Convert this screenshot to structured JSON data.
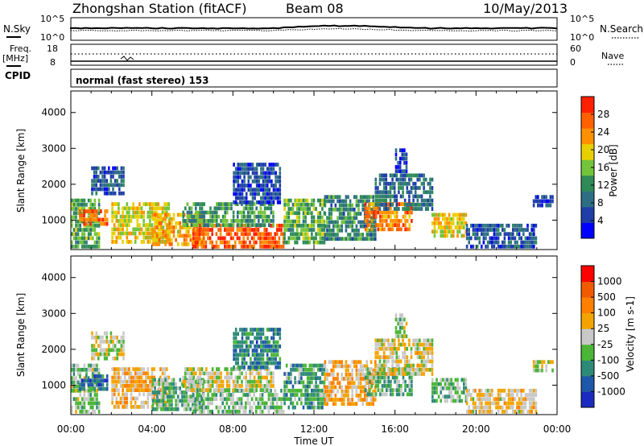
{
  "header": {
    "station": "Zhongshan Station (fitACF)",
    "beam": "Beam 08",
    "date": "10/May/2013"
  },
  "aux_panels": {
    "nsky_label": "N.Sky",
    "nsky_ticks": [
      "10^5",
      "10^0"
    ],
    "nsearch_label": "N.Search",
    "nsearch_ticks": [
      "10^5",
      "10^0"
    ],
    "freq_label_1": "Freq.",
    "freq_label_2": "[MHz]",
    "freq_ticks": [
      "18",
      "8"
    ],
    "nave_label": "Nave",
    "nave_ticks": [
      "60",
      "0"
    ],
    "cpid_label": "CPID",
    "cpid_text": "normal (fast stereo) 153"
  },
  "axes": {
    "y_label": "Slant Range [km]",
    "y_ticks": [
      "4000",
      "3000",
      "2000",
      "1000"
    ],
    "x_label": "Time UT",
    "x_ticks": [
      "00:00",
      "04:00",
      "08:00",
      "12:00",
      "16:00",
      "20:00",
      "00:00"
    ]
  },
  "colors": {
    "power_scale": [
      "#0000ff",
      "#1e3ea8",
      "#2e6e84",
      "#2e8b57",
      "#74c43b",
      "#e8d000",
      "#ff9000",
      "#ff6000",
      "#ff2000"
    ],
    "velocity_scale": [
      "#1b2bbf",
      "#1e58a8",
      "#2e8a78",
      "#4ab536",
      "#c8c8c8",
      "#f3a400",
      "#ff8000",
      "#f25a00",
      "#ff0000"
    ]
  },
  "chart_data": [
    {
      "type": "heatmap",
      "title": "Power",
      "ylabel": "Slant Range [km]",
      "xlabel": "",
      "xlim": [
        "00:00",
        "24:00"
      ],
      "ylim": [
        180,
        4600
      ],
      "colorbar_label": "Power [dB]",
      "colorbar_ticks": [
        "28",
        "24",
        "20",
        "16",
        "12",
        "8",
        "4"
      ],
      "colorbar_range": [
        0,
        32
      ],
      "regions": [
        {
          "t": [
            0.0,
            1.4
          ],
          "r": [
            300,
            1600
          ],
          "v": 14
        },
        {
          "t": [
            0.4,
            1.8
          ],
          "r": [
            850,
            1300
          ],
          "v": 26
        },
        {
          "t": [
            1.0,
            2.6
          ],
          "r": [
            1700,
            2500
          ],
          "v": 7
        },
        {
          "t": [
            2.0,
            4.8
          ],
          "r": [
            400,
            1500
          ],
          "v": 19
        },
        {
          "t": [
            4.0,
            6.5
          ],
          "r": [
            300,
            1200
          ],
          "v": 22
        },
        {
          "t": [
            6.0,
            10.5
          ],
          "r": [
            250,
            900
          ],
          "v": 27
        },
        {
          "t": [
            5.5,
            10.0
          ],
          "r": [
            800,
            1500
          ],
          "v": 13
        },
        {
          "t": [
            8.0,
            10.3
          ],
          "r": [
            1500,
            2600
          ],
          "v": 6
        },
        {
          "t": [
            10.5,
            12.5
          ],
          "r": [
            400,
            1600
          ],
          "v": 15
        },
        {
          "t": [
            12.5,
            15.0
          ],
          "r": [
            500,
            1700
          ],
          "v": 11
        },
        {
          "t": [
            14.5,
            16.8
          ],
          "r": [
            700,
            1500
          ],
          "v": 25
        },
        {
          "t": [
            15.0,
            17.8
          ],
          "r": [
            1300,
            2300
          ],
          "v": 9
        },
        {
          "t": [
            16.0,
            16.6
          ],
          "r": [
            2400,
            3000
          ],
          "v": 6
        },
        {
          "t": [
            17.8,
            19.5
          ],
          "r": [
            500,
            1200
          ],
          "v": 20
        },
        {
          "t": [
            19.5,
            23.0
          ],
          "r": [
            300,
            900
          ],
          "v": 7
        },
        {
          "t": [
            22.8,
            23.8
          ],
          "r": [
            1400,
            1700
          ],
          "v": 6
        }
      ]
    },
    {
      "type": "heatmap",
      "title": "Velocity",
      "ylabel": "Slant Range [km]",
      "xlabel": "Time UT",
      "xlim": [
        "00:00",
        "24:00"
      ],
      "ylim": [
        180,
        4600
      ],
      "colorbar_label": "Velocity [m s-1]",
      "colorbar_ticks": [
        "1000",
        "500",
        "100",
        "25",
        "-25",
        "-100",
        "-500",
        "-1000"
      ],
      "colorbar_range": [
        -1200,
        1200
      ],
      "regions": [
        {
          "t": [
            0.0,
            1.4
          ],
          "r": [
            300,
            1600
          ],
          "v": -150
        },
        {
          "t": [
            0.4,
            1.8
          ],
          "r": [
            850,
            1300
          ],
          "v": -700
        },
        {
          "t": [
            1.0,
            2.6
          ],
          "r": [
            1700,
            2500
          ],
          "v": 0
        },
        {
          "t": [
            2.0,
            4.8
          ],
          "r": [
            400,
            1500
          ],
          "v": 200
        },
        {
          "t": [
            4.0,
            6.5
          ],
          "r": [
            300,
            1200
          ],
          "v": -300
        },
        {
          "t": [
            6.0,
            10.5
          ],
          "r": [
            250,
            900
          ],
          "v": -200
        },
        {
          "t": [
            5.5,
            10.0
          ],
          "r": [
            800,
            1500
          ],
          "v": 0
        },
        {
          "t": [
            8.0,
            10.3
          ],
          "r": [
            1500,
            2600
          ],
          "v": -600
        },
        {
          "t": [
            10.5,
            12.5
          ],
          "r": [
            400,
            1600
          ],
          "v": -400
        },
        {
          "t": [
            12.5,
            15.0
          ],
          "r": [
            500,
            1700
          ],
          "v": 300
        },
        {
          "t": [
            14.5,
            16.8
          ],
          "r": [
            700,
            1500
          ],
          "v": -250
        },
        {
          "t": [
            15.0,
            17.8
          ],
          "r": [
            1300,
            2300
          ],
          "v": 80
        },
        {
          "t": [
            16.0,
            16.6
          ],
          "r": [
            2400,
            3000
          ],
          "v": -150
        },
        {
          "t": [
            17.8,
            19.5
          ],
          "r": [
            500,
            1200
          ],
          "v": -300
        },
        {
          "t": [
            19.5,
            23.0
          ],
          "r": [
            300,
            900
          ],
          "v": 150
        },
        {
          "t": [
            22.8,
            23.8
          ],
          "r": [
            1400,
            1700
          ],
          "v": 40
        }
      ]
    }
  ]
}
